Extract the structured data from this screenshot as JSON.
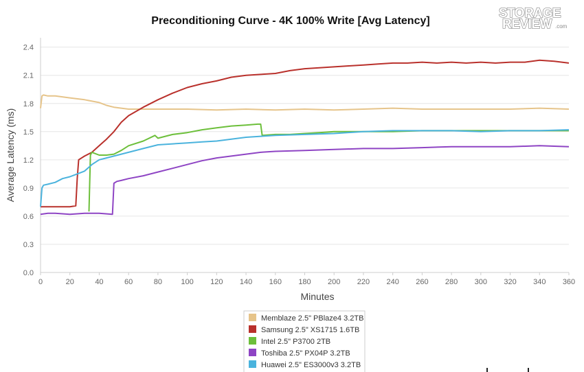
{
  "chart_data": {
    "type": "line",
    "title": "Preconditioning Curve - 4K 100% Write [Avg Latency]",
    "xlabel": "Minutes",
    "ylabel": "Average Latency (ms)",
    "xlim": [
      0,
      360
    ],
    "ylim": [
      0.0,
      2.5
    ],
    "x_ticks": [
      0,
      20,
      40,
      60,
      80,
      100,
      120,
      140,
      160,
      180,
      200,
      220,
      240,
      260,
      280,
      300,
      320,
      340,
      360
    ],
    "y_ticks": [
      0.0,
      0.3,
      0.6,
      0.9,
      1.2,
      1.5,
      1.8,
      2.1,
      2.4
    ],
    "grid": "horizontal",
    "legend_position": "bottom",
    "series": [
      {
        "name": "Memblaze 2.5\" PBlaze4 3.2TB",
        "color": "#e6c48a",
        "x": [
          0,
          1,
          2,
          5,
          10,
          20,
          30,
          40,
          45,
          50,
          55,
          60,
          70,
          80,
          90,
          100,
          120,
          140,
          160,
          180,
          200,
          220,
          240,
          260,
          280,
          300,
          320,
          340,
          360
        ],
        "y": [
          1.75,
          1.88,
          1.89,
          1.88,
          1.88,
          1.86,
          1.84,
          1.81,
          1.78,
          1.76,
          1.75,
          1.74,
          1.74,
          1.74,
          1.74,
          1.74,
          1.73,
          1.74,
          1.73,
          1.74,
          1.73,
          1.74,
          1.75,
          1.74,
          1.74,
          1.74,
          1.74,
          1.75,
          1.74
        ]
      },
      {
        "name": "Samsung 2.5\" XS1715 1.6TB",
        "color": "#b9302b",
        "x": [
          0,
          5,
          10,
          20,
          24,
          25,
          26,
          30,
          35,
          40,
          45,
          50,
          55,
          60,
          70,
          80,
          90,
          100,
          110,
          120,
          130,
          140,
          150,
          160,
          170,
          180,
          190,
          200,
          210,
          220,
          230,
          240,
          250,
          260,
          270,
          280,
          290,
          300,
          310,
          320,
          330,
          340,
          350,
          360
        ],
        "y": [
          0.7,
          0.7,
          0.7,
          0.7,
          0.71,
          1.0,
          1.2,
          1.24,
          1.28,
          1.35,
          1.42,
          1.5,
          1.6,
          1.67,
          1.76,
          1.84,
          1.91,
          1.97,
          2.01,
          2.04,
          2.08,
          2.1,
          2.11,
          2.12,
          2.15,
          2.17,
          2.18,
          2.19,
          2.2,
          2.21,
          2.22,
          2.23,
          2.23,
          2.24,
          2.23,
          2.24,
          2.23,
          2.24,
          2.23,
          2.24,
          2.24,
          2.26,
          2.25,
          2.23
        ]
      },
      {
        "name": "Intel 2.5\" P3700 2TB",
        "color": "#6cbf3a",
        "x": [
          33,
          34,
          35,
          40,
          45,
          50,
          55,
          60,
          70,
          78,
          80,
          90,
          100,
          110,
          120,
          130,
          140,
          148,
          150,
          151,
          160,
          170,
          180,
          190,
          200,
          220,
          240,
          260,
          280,
          300,
          320,
          340,
          360
        ],
        "y": [
          0.65,
          1.25,
          1.28,
          1.25,
          1.25,
          1.26,
          1.3,
          1.35,
          1.4,
          1.46,
          1.43,
          1.47,
          1.49,
          1.52,
          1.54,
          1.56,
          1.57,
          1.58,
          1.58,
          1.46,
          1.47,
          1.47,
          1.48,
          1.49,
          1.5,
          1.5,
          1.5,
          1.51,
          1.51,
          1.51,
          1.51,
          1.51,
          1.51
        ]
      },
      {
        "name": "Toshiba 2.5\" PX04P 3.2TB",
        "color": "#8e44c4",
        "x": [
          0,
          5,
          10,
          20,
          30,
          40,
          49,
          50,
          52,
          55,
          60,
          70,
          80,
          90,
          100,
          110,
          120,
          130,
          140,
          150,
          160,
          180,
          200,
          220,
          240,
          260,
          280,
          300,
          320,
          340,
          360
        ],
        "y": [
          0.62,
          0.63,
          0.63,
          0.62,
          0.63,
          0.63,
          0.62,
          0.95,
          0.97,
          0.98,
          1.0,
          1.03,
          1.07,
          1.11,
          1.15,
          1.19,
          1.22,
          1.24,
          1.26,
          1.28,
          1.29,
          1.3,
          1.31,
          1.32,
          1.32,
          1.33,
          1.34,
          1.34,
          1.34,
          1.35,
          1.34
        ]
      },
      {
        "name": "Huawei 2.5\" ES3000v3 3.2TB",
        "color": "#4ab3dd",
        "x": [
          0,
          1,
          2,
          5,
          10,
          15,
          20,
          25,
          30,
          35,
          40,
          45,
          50,
          60,
          70,
          80,
          90,
          100,
          110,
          120,
          130,
          140,
          150,
          160,
          180,
          200,
          220,
          240,
          260,
          280,
          300,
          320,
          340,
          360
        ],
        "y": [
          0.7,
          0.9,
          0.93,
          0.94,
          0.96,
          1.0,
          1.02,
          1.05,
          1.08,
          1.15,
          1.2,
          1.22,
          1.24,
          1.28,
          1.32,
          1.36,
          1.37,
          1.38,
          1.39,
          1.4,
          1.42,
          1.44,
          1.45,
          1.46,
          1.47,
          1.48,
          1.5,
          1.51,
          1.51,
          1.51,
          1.5,
          1.51,
          1.51,
          1.52
        ]
      }
    ]
  },
  "logo": {
    "line1": "STORAGE",
    "line2": "REVIEW",
    "suffix": ".com"
  }
}
